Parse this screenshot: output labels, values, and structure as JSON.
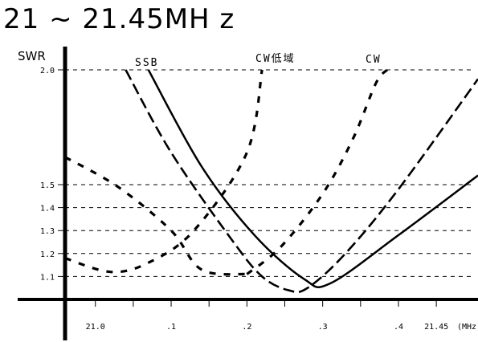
{
  "chart_data": {
    "type": "line",
    "title": "21 ~ 21.45MH z",
    "ylabel": "SWR",
    "xlabel": "",
    "x_unit_label": "(MHz)",
    "xlim": [
      20.96,
      21.505
    ],
    "ylim": [
      1.0,
      2.0
    ],
    "grid": "dashed horizontal at y ticks",
    "x_ticks": [
      {
        "value": 21.0,
        "label": "21.0"
      },
      {
        "value": 21.05,
        "label": ""
      },
      {
        "value": 21.1,
        "label": ".1"
      },
      {
        "value": 21.15,
        "label": ""
      },
      {
        "value": 21.2,
        "label": ".2"
      },
      {
        "value": 21.25,
        "label": ""
      },
      {
        "value": 21.3,
        "label": ".3"
      },
      {
        "value": 21.35,
        "label": ""
      },
      {
        "value": 21.4,
        "label": ".4"
      },
      {
        "value": 21.45,
        "label": "21.45"
      }
    ],
    "y_ticks": [
      {
        "value": 1.1,
        "label": "1.1"
      },
      {
        "value": 1.2,
        "label": "1.2"
      },
      {
        "value": 1.3,
        "label": "1.3"
      },
      {
        "value": 1.4,
        "label": "1.4"
      },
      {
        "value": 1.5,
        "label": "1.5"
      },
      {
        "value": 2.0,
        "label": "2.0"
      }
    ],
    "series": [
      {
        "name": "SSB",
        "style": "long-dash",
        "x": [
          21.04,
          21.1,
          21.18,
          21.22,
          21.255,
          21.28,
          21.33,
          21.4,
          21.505
        ],
        "y": [
          2.0,
          1.64,
          1.26,
          1.1,
          1.04,
          1.05,
          1.2,
          1.48,
          1.96
        ]
      },
      {
        "name": "",
        "style": "solid",
        "x": [
          21.07,
          21.14,
          21.21,
          21.275,
          21.31,
          21.4,
          21.505
        ],
        "y": [
          2.0,
          1.58,
          1.28,
          1.09,
          1.07,
          1.28,
          1.54
        ]
      },
      {
        "name": "CW低域",
        "style": "short-dash",
        "x": [
          20.96,
          21.02,
          21.07,
          21.13,
          21.2,
          21.22
        ],
        "y": [
          1.18,
          1.12,
          1.16,
          1.3,
          1.64,
          2.0
        ]
      },
      {
        "name": "",
        "style": "short-dash",
        "x": [
          20.96,
          21.03,
          21.1,
          21.14,
          21.2
        ],
        "y": [
          1.62,
          1.49,
          1.3,
          1.13,
          1.11
        ]
      },
      {
        "name": "CW",
        "style": "short-dash",
        "x": [
          21.2,
          21.245,
          21.3,
          21.34,
          21.37,
          21.385
        ],
        "y": [
          1.11,
          1.23,
          1.46,
          1.7,
          1.94,
          2.0
        ]
      }
    ]
  }
}
